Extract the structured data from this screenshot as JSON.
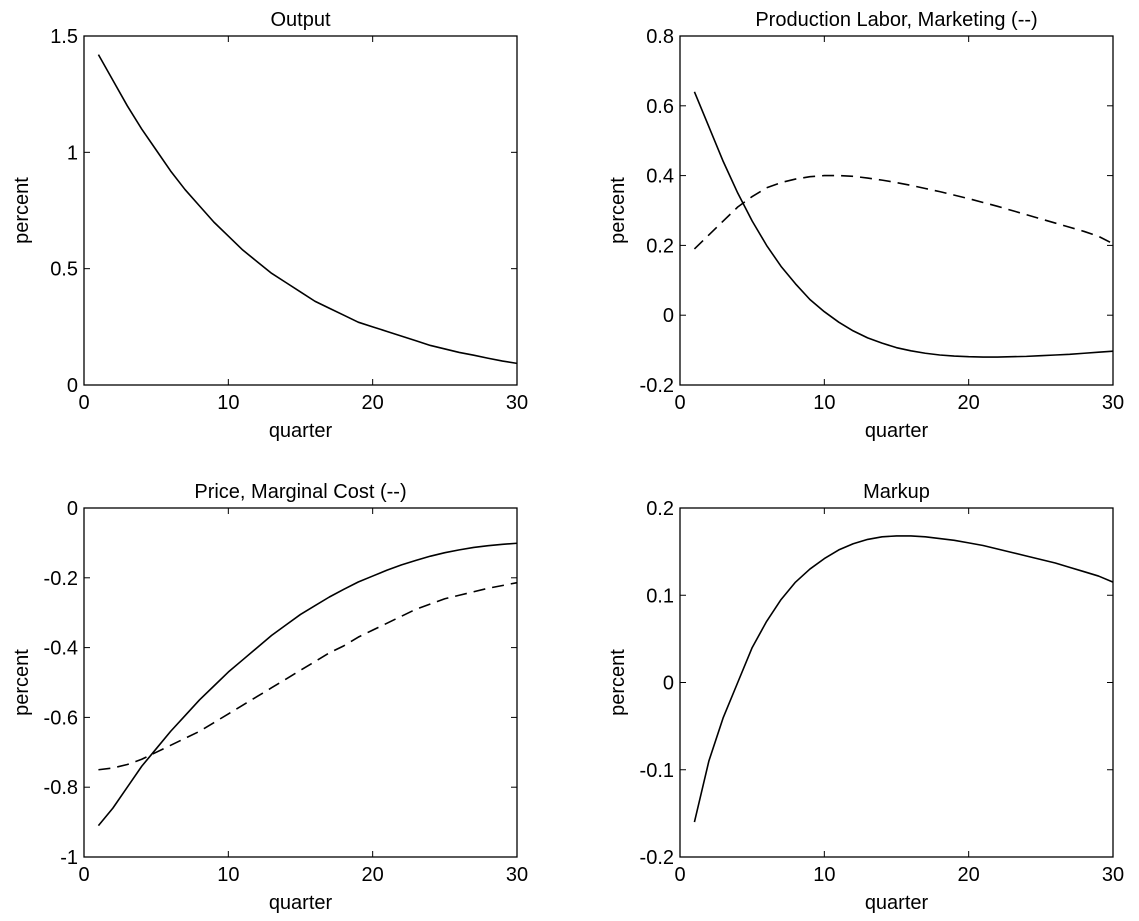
{
  "chart_data": [
    {
      "type": "line",
      "title": "Output",
      "xlabel": "quarter",
      "ylabel": "percent",
      "xlim": [
        0,
        30
      ],
      "ylim": [
        0,
        1.5
      ],
      "xticks": [
        0,
        10,
        20,
        30
      ],
      "xtick_labels": [
        "0",
        "10",
        "20",
        "30"
      ],
      "yticks": [
        0,
        0.5,
        1,
        1.5
      ],
      "ytick_labels": [
        "0",
        "0.5",
        "1",
        "1.5"
      ],
      "grid": false,
      "series": [
        {
          "style": "solid",
          "x": [
            1,
            2,
            3,
            4,
            5,
            6,
            7,
            8,
            9,
            10,
            11,
            12,
            13,
            14,
            15,
            16,
            17,
            18,
            19,
            20,
            21,
            22,
            23,
            24,
            25,
            26,
            27,
            28,
            29,
            30
          ],
          "y": [
            1.42,
            1.31,
            1.2,
            1.1,
            1.01,
            0.92,
            0.84,
            0.77,
            0.7,
            0.64,
            0.58,
            0.53,
            0.48,
            0.44,
            0.4,
            0.36,
            0.33,
            0.3,
            0.27,
            0.25,
            0.23,
            0.21,
            0.19,
            0.17,
            0.155,
            0.14,
            0.128,
            0.115,
            0.103,
            0.093
          ]
        }
      ]
    },
    {
      "type": "line",
      "title": "Production Labor, Marketing (--)",
      "xlabel": "quarter",
      "ylabel": "percent",
      "xlim": [
        0,
        30
      ],
      "ylim": [
        -0.2,
        0.8
      ],
      "xticks": [
        0,
        10,
        20,
        30
      ],
      "xtick_labels": [
        "0",
        "10",
        "20",
        "30"
      ],
      "yticks": [
        -0.2,
        0,
        0.2,
        0.4,
        0.6,
        0.8
      ],
      "ytick_labels": [
        "-0.2",
        "0",
        "0.2",
        "0.4",
        "0.6",
        "0.8"
      ],
      "grid": false,
      "series": [
        {
          "style": "solid",
          "x": [
            1,
            2,
            3,
            4,
            5,
            6,
            7,
            8,
            9,
            10,
            11,
            12,
            13,
            14,
            15,
            16,
            17,
            18,
            19,
            20,
            21,
            22,
            23,
            24,
            25,
            26,
            27,
            28,
            29,
            30
          ],
          "y": [
            0.64,
            0.54,
            0.44,
            0.35,
            0.27,
            0.2,
            0.14,
            0.09,
            0.045,
            0.01,
            -0.02,
            -0.045,
            -0.065,
            -0.08,
            -0.093,
            -0.102,
            -0.109,
            -0.114,
            -0.117,
            -0.119,
            -0.12,
            -0.12,
            -0.119,
            -0.118,
            -0.116,
            -0.114,
            -0.112,
            -0.109,
            -0.106,
            -0.103
          ]
        },
        {
          "style": "dashed",
          "x": [
            1,
            2,
            3,
            4,
            5,
            6,
            7,
            8,
            9,
            10,
            11,
            12,
            13,
            14,
            15,
            16,
            17,
            18,
            19,
            20,
            21,
            22,
            23,
            24,
            25,
            26,
            27,
            28,
            29,
            30
          ],
          "y": [
            0.19,
            0.23,
            0.27,
            0.31,
            0.34,
            0.365,
            0.38,
            0.39,
            0.397,
            0.4,
            0.4,
            0.398,
            0.393,
            0.387,
            0.38,
            0.372,
            0.363,
            0.354,
            0.344,
            0.334,
            0.323,
            0.312,
            0.3,
            0.288,
            0.276,
            0.264,
            0.252,
            0.24,
            0.226,
            0.205
          ]
        }
      ]
    },
    {
      "type": "line",
      "title": "Price, Marginal Cost (--)",
      "xlabel": "quarter",
      "ylabel": "percent",
      "xlim": [
        0,
        30
      ],
      "ylim": [
        -1,
        0
      ],
      "xticks": [
        0,
        10,
        20,
        30
      ],
      "xtick_labels": [
        "0",
        "10",
        "20",
        "30"
      ],
      "yticks": [
        -1,
        -0.8,
        -0.6,
        -0.4,
        -0.2,
        0
      ],
      "ytick_labels": [
        "-1",
        "-0.8",
        "-0.6",
        "-0.4",
        "-0.2",
        "0"
      ],
      "grid": false,
      "series": [
        {
          "style": "solid",
          "x": [
            1,
            2,
            3,
            4,
            5,
            6,
            7,
            8,
            9,
            10,
            11,
            12,
            13,
            14,
            15,
            16,
            17,
            18,
            19,
            20,
            21,
            22,
            23,
            24,
            25,
            26,
            27,
            28,
            29,
            30
          ],
          "y": [
            -0.91,
            -0.86,
            -0.8,
            -0.74,
            -0.69,
            -0.64,
            -0.595,
            -0.55,
            -0.51,
            -0.47,
            -0.435,
            -0.4,
            -0.365,
            -0.335,
            -0.305,
            -0.28,
            -0.255,
            -0.233,
            -0.212,
            -0.195,
            -0.178,
            -0.163,
            -0.15,
            -0.138,
            -0.128,
            -0.12,
            -0.113,
            -0.108,
            -0.104,
            -0.101
          ]
        },
        {
          "style": "dashed",
          "x": [
            1,
            2,
            3,
            4,
            5,
            6,
            7,
            8,
            9,
            10,
            11,
            12,
            13,
            14,
            15,
            16,
            17,
            18,
            19,
            20,
            21,
            22,
            23,
            24,
            25,
            26,
            27,
            28,
            29,
            30
          ],
          "y": [
            -0.75,
            -0.745,
            -0.735,
            -0.72,
            -0.7,
            -0.68,
            -0.66,
            -0.64,
            -0.615,
            -0.59,
            -0.565,
            -0.54,
            -0.515,
            -0.49,
            -0.465,
            -0.44,
            -0.415,
            -0.395,
            -0.37,
            -0.35,
            -0.33,
            -0.31,
            -0.29,
            -0.275,
            -0.26,
            -0.25,
            -0.24,
            -0.23,
            -0.222,
            -0.214
          ]
        }
      ]
    },
    {
      "type": "line",
      "title": "Markup",
      "xlabel": "quarter",
      "ylabel": "percent",
      "xlim": [
        0,
        30
      ],
      "ylim": [
        -0.2,
        0.2
      ],
      "xticks": [
        0,
        10,
        20,
        30
      ],
      "xtick_labels": [
        "0",
        "10",
        "20",
        "30"
      ],
      "yticks": [
        -0.2,
        -0.1,
        0,
        0.1,
        0.2
      ],
      "ytick_labels": [
        "-0.2",
        "-0.1",
        "0",
        "0.1",
        "0.2"
      ],
      "grid": false,
      "series": [
        {
          "style": "solid",
          "x": [
            1,
            2,
            3,
            4,
            5,
            6,
            7,
            8,
            9,
            10,
            11,
            12,
            13,
            14,
            15,
            16,
            17,
            18,
            19,
            20,
            21,
            22,
            23,
            24,
            25,
            26,
            27,
            28,
            29,
            30
          ],
          "y": [
            -0.16,
            -0.09,
            -0.04,
            0.0,
            0.04,
            0.07,
            0.095,
            0.115,
            0.13,
            0.142,
            0.152,
            0.159,
            0.164,
            0.167,
            0.168,
            0.168,
            0.167,
            0.165,
            0.163,
            0.16,
            0.157,
            0.153,
            0.149,
            0.145,
            0.141,
            0.137,
            0.132,
            0.127,
            0.122,
            0.115
          ]
        }
      ]
    }
  ]
}
